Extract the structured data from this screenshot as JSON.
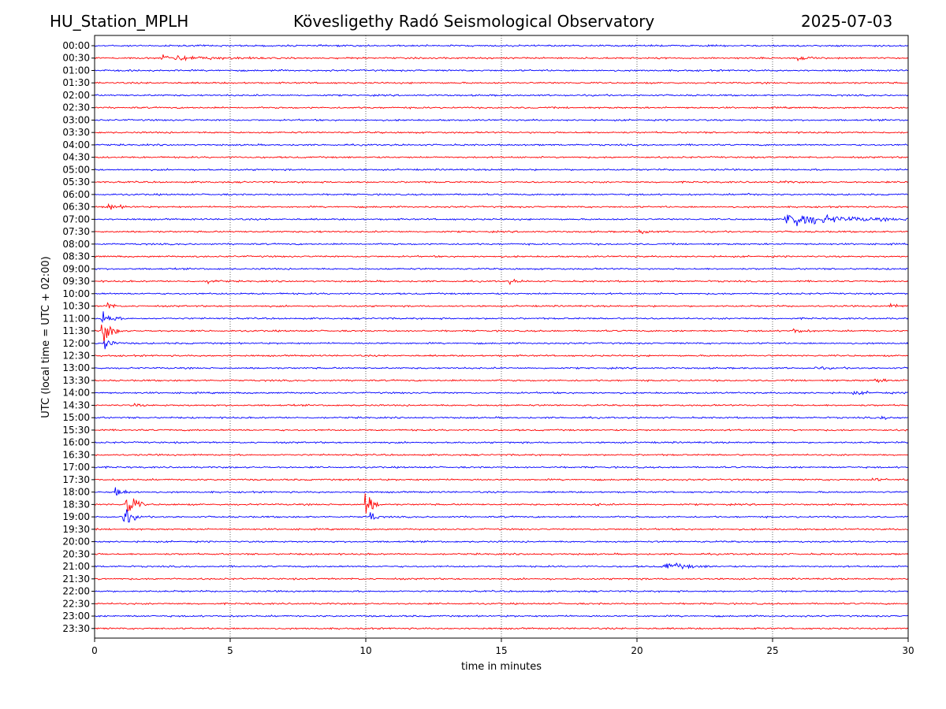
{
  "header": {
    "station": "HU_Station_MPLH",
    "observatory": "Kövesligethy Radó Seismological Observatory",
    "date": "2025-07-03"
  },
  "chart_data": {
    "type": "helicorder",
    "title": "Kövesligethy Radó Seismological Observatory",
    "xlabel": "time in minutes",
    "ylabel": "UTC (local time = UTC + 02:00)",
    "xlim": [
      0,
      30
    ],
    "x_ticks": [
      0,
      5,
      10,
      15,
      20,
      25,
      30
    ],
    "vertical_gridlines": [
      5,
      10,
      15,
      20,
      25
    ],
    "row_labels": [
      "00:00",
      "00:30",
      "01:00",
      "01:30",
      "02:00",
      "02:30",
      "03:00",
      "03:30",
      "04:00",
      "04:30",
      "05:00",
      "05:30",
      "06:00",
      "06:30",
      "07:00",
      "07:30",
      "08:00",
      "08:30",
      "09:00",
      "09:30",
      "10:00",
      "10:30",
      "11:00",
      "11:30",
      "12:00",
      "12:30",
      "13:00",
      "13:30",
      "14:00",
      "14:30",
      "15:00",
      "15:30",
      "16:00",
      "16:30",
      "17:00",
      "17:30",
      "18:00",
      "18:30",
      "19:00",
      "19:30",
      "20:00",
      "20:30",
      "21:00",
      "21:30",
      "22:00",
      "22:30",
      "23:00",
      "23:30"
    ],
    "trace_colors": [
      "#0000ff",
      "#ff0000"
    ],
    "events": [
      {
        "row": "00:30",
        "minute": 2.5,
        "amplitude": 0.35,
        "duration": 4.0
      },
      {
        "row": "00:30",
        "minute": 25.9,
        "amplitude": 0.25,
        "duration": 1.0
      },
      {
        "row": "05:30",
        "minute": 25.3,
        "amplitude": 0.12,
        "duration": 1.0
      },
      {
        "row": "06:00",
        "minute": 24.1,
        "amplitude": 0.1,
        "duration": 0.6
      },
      {
        "row": "06:30",
        "minute": 0.5,
        "amplitude": 0.3,
        "duration": 1.2
      },
      {
        "row": "07:00",
        "minute": 25.5,
        "amplitude": 1.0,
        "duration": 4.5
      },
      {
        "row": "07:30",
        "minute": 20.1,
        "amplitude": 0.3,
        "duration": 0.8
      },
      {
        "row": "07:30",
        "minute": 8.0,
        "amplitude": 0.12,
        "duration": 0.7
      },
      {
        "row": "09:30",
        "minute": 4.2,
        "amplitude": 0.25,
        "duration": 0.8
      },
      {
        "row": "09:30",
        "minute": 15.3,
        "amplitude": 0.22,
        "duration": 0.8
      },
      {
        "row": "10:30",
        "minute": 0.5,
        "amplitude": 0.9,
        "duration": 0.3
      },
      {
        "row": "10:30",
        "minute": 29.4,
        "amplitude": 0.25,
        "duration": 0.6
      },
      {
        "row": "11:00",
        "minute": 0.3,
        "amplitude": 1.0,
        "duration": 0.8
      },
      {
        "row": "11:30",
        "minute": 0.3,
        "amplitude": 1.6,
        "duration": 0.8
      },
      {
        "row": "11:30",
        "minute": 25.8,
        "amplitude": 0.3,
        "duration": 0.8
      },
      {
        "row": "12:00",
        "minute": 0.4,
        "amplitude": 0.9,
        "duration": 0.6
      },
      {
        "row": "13:00",
        "minute": 26.5,
        "amplitude": 0.12,
        "duration": 1.5
      },
      {
        "row": "13:30",
        "minute": 28.8,
        "amplitude": 0.22,
        "duration": 0.9
      },
      {
        "row": "14:00",
        "minute": 28.0,
        "amplitude": 0.15,
        "duration": 1.8
      },
      {
        "row": "14:30",
        "minute": 1.5,
        "amplitude": 0.2,
        "duration": 0.5
      },
      {
        "row": "15:00",
        "minute": 29.0,
        "amplitude": 0.15,
        "duration": 1.0
      },
      {
        "row": "17:30",
        "minute": 28.7,
        "amplitude": 0.15,
        "duration": 0.8
      },
      {
        "row": "18:00",
        "minute": 0.8,
        "amplitude": 0.6,
        "duration": 0.9
      },
      {
        "row": "18:30",
        "minute": 1.2,
        "amplitude": 1.9,
        "duration": 0.7
      },
      {
        "row": "18:30",
        "minute": 10.0,
        "amplitude": 1.7,
        "duration": 0.6
      },
      {
        "row": "18:30",
        "minute": 18.5,
        "amplitude": 0.12,
        "duration": 0.5
      },
      {
        "row": "19:00",
        "minute": 1.1,
        "amplitude": 1.0,
        "duration": 0.8
      },
      {
        "row": "19:00",
        "minute": 10.2,
        "amplitude": 0.8,
        "duration": 0.4
      },
      {
        "row": "21:00",
        "minute": 21.0,
        "amplitude": 0.5,
        "duration": 2.0
      }
    ]
  }
}
